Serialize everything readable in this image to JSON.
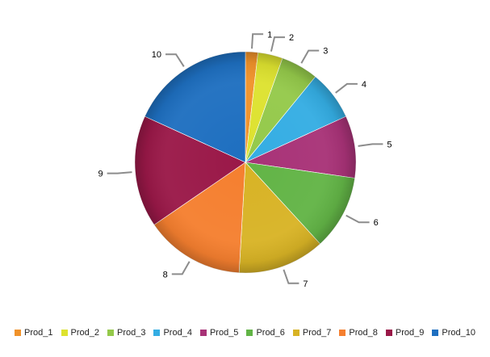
{
  "chart_data": {
    "type": "pie",
    "start_angle_deg": 0,
    "direction": "clockwise",
    "style": "3d-shaded",
    "legend_position": "bottom",
    "categories": [
      "Prod_1",
      "Prod_2",
      "Prod_3",
      "Prod_4",
      "Prod_5",
      "Prod_6",
      "Prod_7",
      "Prod_8",
      "Prod_9",
      "Prod_10"
    ],
    "values": [
      1,
      2,
      3,
      4,
      5,
      6,
      7,
      8,
      9,
      10
    ],
    "data_labels": [
      "1",
      "2",
      "3",
      "4",
      "5",
      "6",
      "7",
      "8",
      "9",
      "10"
    ],
    "colors": [
      "#f0922a",
      "#dde22f",
      "#94c94a",
      "#34ade3",
      "#a83277",
      "#62b446",
      "#d8b325",
      "#f57f2f",
      "#9a1848",
      "#1e6fc0"
    ]
  }
}
